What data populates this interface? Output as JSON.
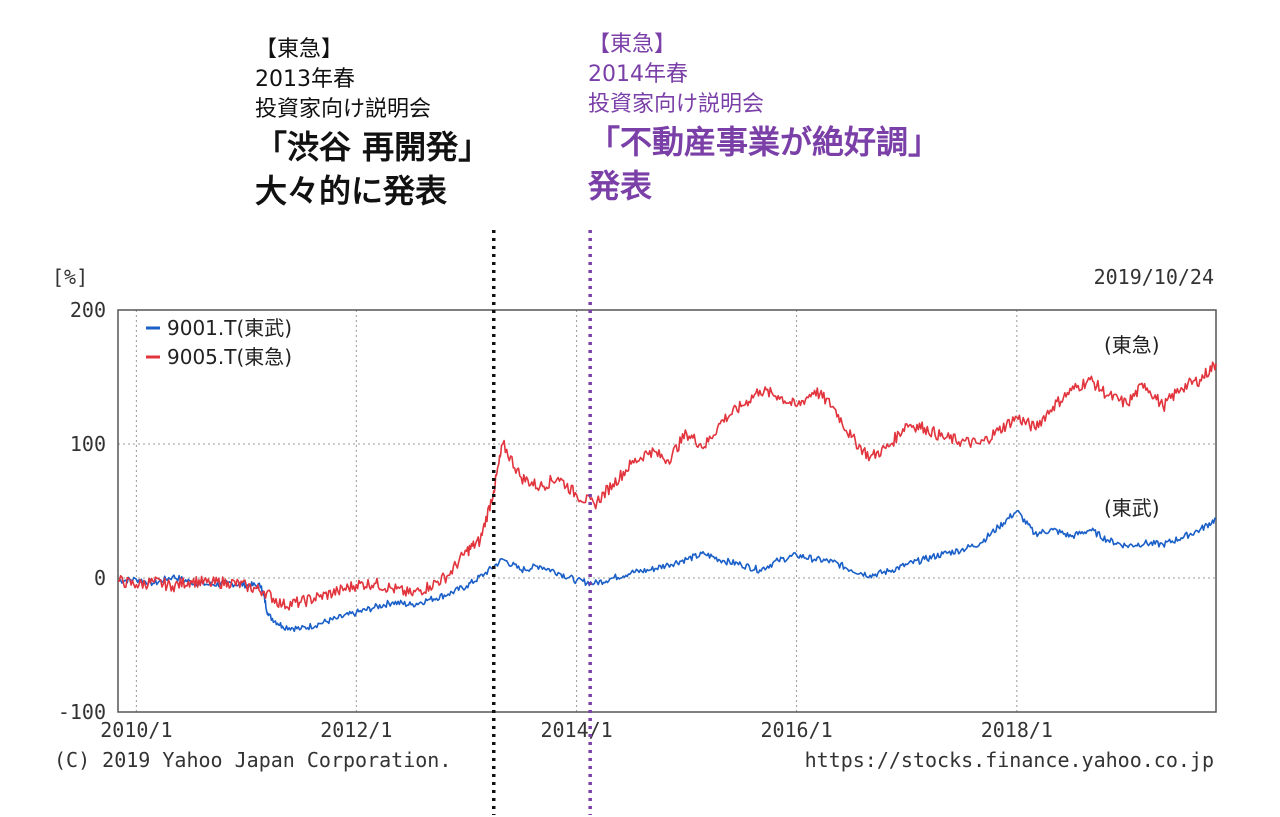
{
  "annotations": {
    "a2013": {
      "line1": "【東急】",
      "line2": "2013年春",
      "line3": "投資家向け説明会",
      "line4": "「渋谷 再開発」",
      "line5": "大々的に発表",
      "color": "#111111"
    },
    "a2014": {
      "line1": "【東急】",
      "line2": "2014年春",
      "line3": "投資家向け説明会",
      "line4": "「不動産事業が絶好調」",
      "line5": "発表",
      "color": "#7b3fa8"
    }
  },
  "chart_data": {
    "type": "line",
    "date_label": "2019/10/24",
    "y_unit_label": "[%]",
    "ylim": [
      -100,
      200
    ],
    "yticks": [
      "200",
      "100",
      "0",
      "-100"
    ],
    "xticks": [
      "2010/1",
      "2012/1",
      "2014/1",
      "2016/1",
      "2018/1"
    ],
    "grid": true,
    "legend_position": "top-left",
    "copyright": "(C) 2019 Yahoo Japan Corporation.",
    "source_url": "https://stocks.finance.yahoo.co.jp",
    "series": [
      {
        "name": "9001.T(東武)",
        "end_label": "(東武)",
        "color": "#1a5fc8",
        "points": [
          [
            "2009-11-01",
            -2
          ],
          [
            "2010-01-01",
            -1
          ],
          [
            "2010-03-01",
            -4
          ],
          [
            "2010-05-01",
            1
          ],
          [
            "2010-07-01",
            -3
          ],
          [
            "2010-09-01",
            -5
          ],
          [
            "2010-11-01",
            -4
          ],
          [
            "2011-01-01",
            -5
          ],
          [
            "2011-02-20",
            -6
          ],
          [
            "2011-03-15",
            -28
          ],
          [
            "2011-05-01",
            -36
          ],
          [
            "2011-07-01",
            -38
          ],
          [
            "2011-09-01",
            -34
          ],
          [
            "2011-11-01",
            -30
          ],
          [
            "2012-01-01",
            -26
          ],
          [
            "2012-03-01",
            -22
          ],
          [
            "2012-05-01",
            -18
          ],
          [
            "2012-07-01",
            -20
          ],
          [
            "2012-09-01",
            -16
          ],
          [
            "2012-11-01",
            -12
          ],
          [
            "2013-01-01",
            -6
          ],
          [
            "2013-03-01",
            3
          ],
          [
            "2013-05-01",
            14
          ],
          [
            "2013-07-01",
            6
          ],
          [
            "2013-09-01",
            9
          ],
          [
            "2013-11-01",
            4
          ],
          [
            "2014-01-01",
            -2
          ],
          [
            "2014-03-01",
            -4
          ],
          [
            "2014-05-01",
            0
          ],
          [
            "2014-07-01",
            4
          ],
          [
            "2014-09-01",
            6
          ],
          [
            "2014-11-01",
            10
          ],
          [
            "2015-01-01",
            14
          ],
          [
            "2015-03-01",
            18
          ],
          [
            "2015-05-01",
            13
          ],
          [
            "2015-07-01",
            10
          ],
          [
            "2015-09-01",
            6
          ],
          [
            "2015-11-01",
            13
          ],
          [
            "2016-01-01",
            17
          ],
          [
            "2016-03-01",
            14
          ],
          [
            "2016-05-01",
            12
          ],
          [
            "2016-07-01",
            6
          ],
          [
            "2016-09-01",
            2
          ],
          [
            "2016-11-01",
            5
          ],
          [
            "2017-01-01",
            10
          ],
          [
            "2017-03-01",
            14
          ],
          [
            "2017-05-01",
            18
          ],
          [
            "2017-07-01",
            21
          ],
          [
            "2017-09-01",
            26
          ],
          [
            "2017-11-01",
            38
          ],
          [
            "2018-01-01",
            50
          ],
          [
            "2018-03-01",
            33
          ],
          [
            "2018-05-01",
            36
          ],
          [
            "2018-07-01",
            31
          ],
          [
            "2018-09-01",
            36
          ],
          [
            "2018-11-01",
            28
          ],
          [
            "2019-01-01",
            24
          ],
          [
            "2019-03-01",
            26
          ],
          [
            "2019-05-01",
            25
          ],
          [
            "2019-07-01",
            30
          ],
          [
            "2019-09-01",
            36
          ],
          [
            "2019-10-24",
            44
          ]
        ]
      },
      {
        "name": "9005.T(東急)",
        "end_label": "(東急)",
        "color": "#e2343d",
        "points": [
          [
            "2009-11-01",
            -2
          ],
          [
            "2010-01-01",
            -5
          ],
          [
            "2010-03-01",
            -3
          ],
          [
            "2010-05-01",
            -6
          ],
          [
            "2010-07-01",
            -2
          ],
          [
            "2010-09-01",
            -4
          ],
          [
            "2010-11-01",
            -3
          ],
          [
            "2011-01-01",
            -6
          ],
          [
            "2011-03-01",
            -10
          ],
          [
            "2011-05-01",
            -20
          ],
          [
            "2011-07-01",
            -18
          ],
          [
            "2011-09-01",
            -14
          ],
          [
            "2011-11-01",
            -10
          ],
          [
            "2012-01-01",
            -5
          ],
          [
            "2012-03-01",
            -4
          ],
          [
            "2012-05-01",
            -8
          ],
          [
            "2012-07-01",
            -12
          ],
          [
            "2012-09-01",
            -6
          ],
          [
            "2012-11-01",
            2
          ],
          [
            "2013-01-01",
            20
          ],
          [
            "2013-02-15",
            28
          ],
          [
            "2013-04-01",
            65
          ],
          [
            "2013-05-01",
            100
          ],
          [
            "2013-07-01",
            75
          ],
          [
            "2013-09-01",
            68
          ],
          [
            "2013-11-01",
            75
          ],
          [
            "2014-01-01",
            62
          ],
          [
            "2014-03-01",
            55
          ],
          [
            "2014-05-01",
            70
          ],
          [
            "2014-07-01",
            85
          ],
          [
            "2014-09-01",
            95
          ],
          [
            "2014-11-01",
            88
          ],
          [
            "2015-01-01",
            108
          ],
          [
            "2015-03-01",
            98
          ],
          [
            "2015-05-01",
            118
          ],
          [
            "2015-07-01",
            128
          ],
          [
            "2015-09-01",
            140
          ],
          [
            "2015-11-01",
            136
          ],
          [
            "2016-01-01",
            128
          ],
          [
            "2016-03-01",
            140
          ],
          [
            "2016-05-01",
            128
          ],
          [
            "2016-07-01",
            105
          ],
          [
            "2016-09-01",
            90
          ],
          [
            "2016-11-01",
            98
          ],
          [
            "2017-01-01",
            115
          ],
          [
            "2017-03-01",
            112
          ],
          [
            "2017-05-01",
            105
          ],
          [
            "2017-07-01",
            102
          ],
          [
            "2017-09-01",
            100
          ],
          [
            "2017-11-01",
            110
          ],
          [
            "2018-01-01",
            120
          ],
          [
            "2018-03-01",
            112
          ],
          [
            "2018-05-01",
            128
          ],
          [
            "2018-07-01",
            140
          ],
          [
            "2018-09-01",
            148
          ],
          [
            "2018-11-01",
            136
          ],
          [
            "2019-01-01",
            130
          ],
          [
            "2019-03-01",
            145
          ],
          [
            "2019-05-01",
            128
          ],
          [
            "2019-07-01",
            142
          ],
          [
            "2019-09-01",
            148
          ],
          [
            "2019-10-24",
            160
          ]
        ]
      }
    ],
    "event_markers": [
      {
        "date": "2013-04-01",
        "color": "#111111"
      },
      {
        "date": "2014-02-15",
        "color": "#7b3fa8"
      }
    ]
  }
}
